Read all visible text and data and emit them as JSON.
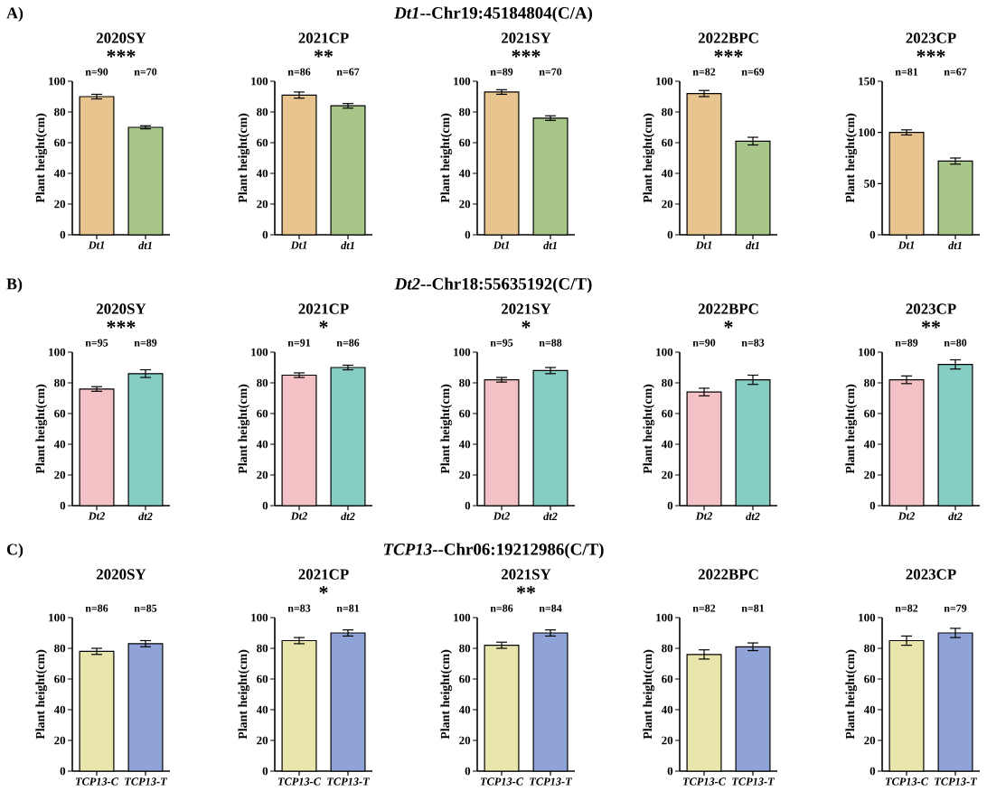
{
  "chart_data": [
    {
      "type": "other",
      "title": "*Dt1*--Chr19:45184804(C/A)",
      "annotations": [
        "A)"
      ]
    },
    {
      "type": "bar",
      "title": "2020SY",
      "ylabel": "Plant height(cm)",
      "categories": [
        "Dt1",
        "dt1"
      ],
      "values": [
        90,
        70
      ],
      "errors": [
        1.5,
        1
      ],
      "colors": [
        "#e8c48f",
        "#a8c68a"
      ],
      "ylim": [
        0,
        100
      ],
      "yticks": [
        0,
        20,
        40,
        60,
        80,
        100
      ],
      "annotations": [
        "***",
        "n=90",
        "n=70"
      ]
    },
    {
      "type": "bar",
      "title": "2021CP",
      "ylabel": "Plant height(cm)",
      "categories": [
        "Dt1",
        "dt1"
      ],
      "values": [
        91,
        84
      ],
      "errors": [
        2,
        1.5
      ],
      "colors": [
        "#e8c48f",
        "#a8c68a"
      ],
      "ylim": [
        0,
        100
      ],
      "yticks": [
        0,
        20,
        40,
        60,
        80,
        100
      ],
      "annotations": [
        "**",
        "n=86",
        "n=67"
      ]
    },
    {
      "type": "bar",
      "title": "2021SY",
      "ylabel": "Plant height(cm)",
      "categories": [
        "Dt1",
        "dt1"
      ],
      "values": [
        93,
        76
      ],
      "errors": [
        1.5,
        1.5
      ],
      "colors": [
        "#e8c48f",
        "#a8c68a"
      ],
      "ylim": [
        0,
        100
      ],
      "yticks": [
        0,
        20,
        40,
        60,
        80,
        100
      ],
      "annotations": [
        "***",
        "n=89",
        "n=70"
      ]
    },
    {
      "type": "bar",
      "title": "2022BPC",
      "ylabel": "Plant height(cm)",
      "categories": [
        "Dt1",
        "dt1"
      ],
      "values": [
        92,
        61
      ],
      "errors": [
        2,
        2.5
      ],
      "colors": [
        "#e8c48f",
        "#a8c68a"
      ],
      "ylim": [
        0,
        100
      ],
      "yticks": [
        0,
        20,
        40,
        60,
        80,
        100
      ],
      "annotations": [
        "***",
        "n=82",
        "n=69"
      ]
    },
    {
      "type": "bar",
      "title": "2023CP",
      "ylabel": "Plant height(cm)",
      "categories": [
        "Dt1",
        "dt1"
      ],
      "values": [
        100,
        72
      ],
      "errors": [
        2.5,
        3
      ],
      "colors": [
        "#e8c48f",
        "#a8c68a"
      ],
      "ylim": [
        0,
        150
      ],
      "yticks": [
        0,
        50,
        100,
        150
      ],
      "annotations": [
        "***",
        "n=81",
        "n=67"
      ]
    },
    {
      "type": "other",
      "title": "*Dt2*--Chr18:55635192(C/T)",
      "annotations": [
        "B)"
      ]
    },
    {
      "type": "bar",
      "title": "2020SY",
      "ylabel": "Plant height(cm)",
      "categories": [
        "Dt2",
        "dt2"
      ],
      "values": [
        76,
        86
      ],
      "errors": [
        1.5,
        2.5
      ],
      "colors": [
        "#f4c2c6",
        "#86cdc4"
      ],
      "ylim": [
        0,
        100
      ],
      "yticks": [
        0,
        20,
        40,
        60,
        80,
        100
      ],
      "annotations": [
        "***",
        "n=95",
        "n=89"
      ]
    },
    {
      "type": "bar",
      "title": "2021CP",
      "ylabel": "Plant height(cm)",
      "categories": [
        "Dt2",
        "dt2"
      ],
      "values": [
        85,
        90
      ],
      "errors": [
        1.5,
        1.5
      ],
      "colors": [
        "#f4c2c6",
        "#86cdc4"
      ],
      "ylim": [
        0,
        100
      ],
      "yticks": [
        0,
        20,
        40,
        60,
        80,
        100
      ],
      "annotations": [
        "*",
        "n=91",
        "n=86"
      ]
    },
    {
      "type": "bar",
      "title": "2021SY",
      "ylabel": "Plant height(cm)",
      "categories": [
        "Dt2",
        "dt2"
      ],
      "values": [
        82,
        88
      ],
      "errors": [
        1.5,
        2
      ],
      "colors": [
        "#f4c2c6",
        "#86cdc4"
      ],
      "ylim": [
        0,
        100
      ],
      "yticks": [
        0,
        20,
        40,
        60,
        80,
        100
      ],
      "annotations": [
        "*",
        "n=95",
        "n=88"
      ]
    },
    {
      "type": "bar",
      "title": "2022BPC",
      "ylabel": "Plant height(cm)",
      "categories": [
        "Dt2",
        "dt2"
      ],
      "values": [
        74,
        82
      ],
      "errors": [
        2.5,
        3
      ],
      "colors": [
        "#f4c2c6",
        "#86cdc4"
      ],
      "ylim": [
        0,
        100
      ],
      "yticks": [
        0,
        20,
        40,
        60,
        80,
        100
      ],
      "annotations": [
        "*",
        "n=90",
        "n=83"
      ]
    },
    {
      "type": "bar",
      "title": "2023CP",
      "ylabel": "Plant height(cm)",
      "categories": [
        "Dt2",
        "dt2"
      ],
      "values": [
        82,
        92
      ],
      "errors": [
        2.5,
        3
      ],
      "colors": [
        "#f4c2c6",
        "#86cdc4"
      ],
      "ylim": [
        0,
        100
      ],
      "yticks": [
        0,
        20,
        40,
        60,
        80,
        100
      ],
      "annotations": [
        "**",
        "n=89",
        "n=80"
      ]
    },
    {
      "type": "other",
      "title": "*TCP13*--Chr06:19212986(C/T)",
      "annotations": [
        "C)"
      ]
    },
    {
      "type": "bar",
      "title": "2020SY",
      "ylabel": "Plant height(cm)",
      "categories": [
        "*TCP13*-C",
        "*TCP13*-T"
      ],
      "values": [
        78,
        83
      ],
      "errors": [
        2,
        2
      ],
      "colors": [
        "#e8e6ac",
        "#8fa3d8"
      ],
      "ylim": [
        0,
        100
      ],
      "yticks": [
        0,
        20,
        40,
        60,
        80,
        100
      ],
      "annotations": [
        "n=86",
        "n=85"
      ]
    },
    {
      "type": "bar",
      "title": "2021CP",
      "ylabel": "Plant height(cm)",
      "categories": [
        "*TCP13*-C",
        "*TCP13*-T"
      ],
      "values": [
        85,
        90
      ],
      "errors": [
        2,
        2
      ],
      "colors": [
        "#e8e6ac",
        "#8fa3d8"
      ],
      "ylim": [
        0,
        100
      ],
      "yticks": [
        0,
        20,
        40,
        60,
        80,
        100
      ],
      "annotations": [
        "*",
        "n=83",
        "n=81"
      ]
    },
    {
      "type": "bar",
      "title": "2021SY",
      "ylabel": "Plant height(cm)",
      "categories": [
        "*TCP13*-C",
        "*TCP13*-T"
      ],
      "values": [
        82,
        90
      ],
      "errors": [
        2,
        2
      ],
      "colors": [
        "#e8e6ac",
        "#8fa3d8"
      ],
      "ylim": [
        0,
        100
      ],
      "yticks": [
        0,
        20,
        40,
        60,
        80,
        100
      ],
      "annotations": [
        "**",
        "n=86",
        "n=84"
      ]
    },
    {
      "type": "bar",
      "title": "2022BPC",
      "ylabel": "Plant height(cm)",
      "categories": [
        "*TCP13*-C",
        "*TCP13*-T"
      ],
      "values": [
        76,
        81
      ],
      "errors": [
        3,
        2.5
      ],
      "colors": [
        "#e8e6ac",
        "#8fa3d8"
      ],
      "ylim": [
        0,
        100
      ],
      "yticks": [
        0,
        20,
        40,
        60,
        80,
        100
      ],
      "annotations": [
        "n=82",
        "n=81"
      ]
    },
    {
      "type": "bar",
      "title": "2023CP",
      "ylabel": "Plant height(cm)",
      "categories": [
        "*TCP13*-C",
        "*TCP13*-T"
      ],
      "values": [
        85,
        90
      ],
      "errors": [
        3,
        3
      ],
      "colors": [
        "#e8e6ac",
        "#8fa3d8"
      ],
      "ylim": [
        0,
        100
      ],
      "yticks": [
        0,
        20,
        40,
        60,
        80,
        100
      ],
      "annotations": [
        "n=82",
        "n=79"
      ]
    }
  ]
}
